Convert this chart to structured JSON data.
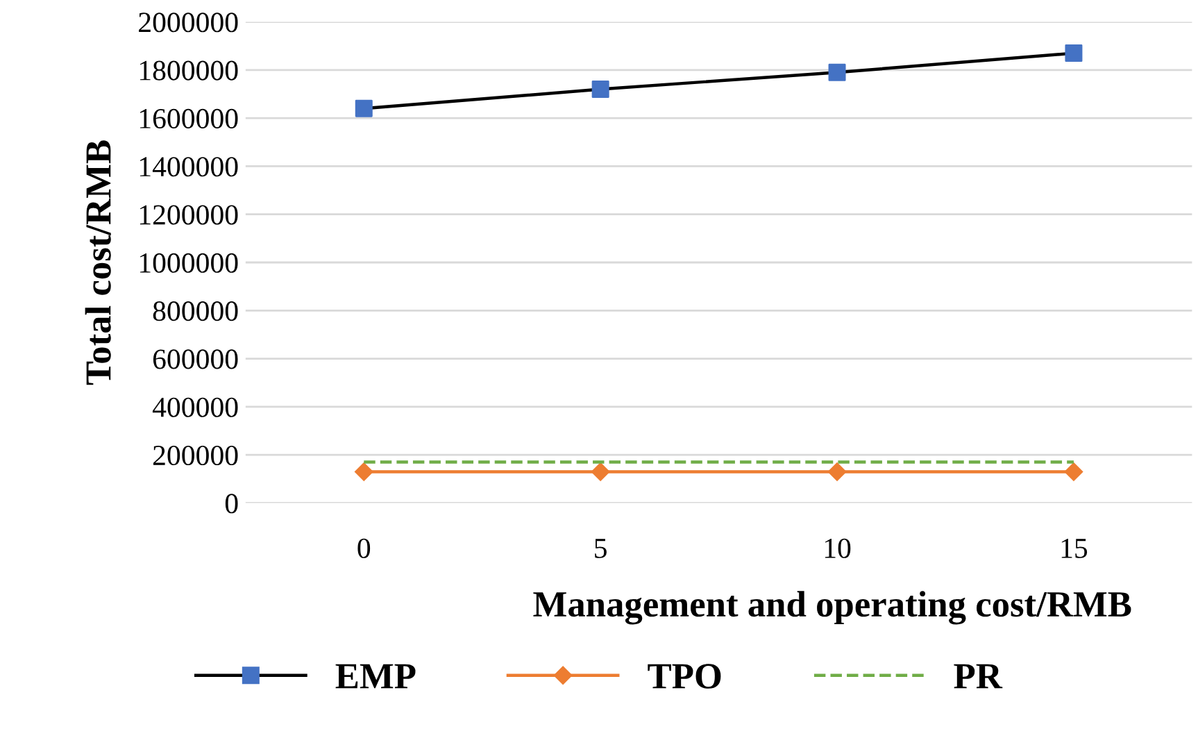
{
  "chart_data": {
    "type": "line",
    "xlabel": "Management and operating cost/RMB",
    "ylabel": "Total cost/RMB",
    "categories": [
      "0",
      "5",
      "10",
      "15"
    ],
    "series": [
      {
        "name": "EMP",
        "color": "#000000",
        "colors": [
          "#4472c4",
          "#4472c4",
          "#4472c4",
          "#4472c4"
        ],
        "marker": "square",
        "line_style": "solid",
        "values": [
          1640000,
          1720000,
          1790000,
          1870000
        ]
      },
      {
        "name": "TPO",
        "color": "#ed7d31",
        "marker": "diamond",
        "line_style": "solid",
        "values": [
          130000,
          130000,
          130000,
          130000
        ]
      },
      {
        "name": "PR",
        "color": "#70ad47",
        "marker": "none",
        "line_style": "dashed",
        "values": [
          170000,
          170000,
          170000,
          170000
        ]
      }
    ],
    "ylim": [
      0,
      2000000
    ],
    "yticks": [
      0,
      200000,
      400000,
      600000,
      800000,
      1000000,
      1200000,
      1400000,
      1600000,
      1800000,
      2000000
    ],
    "grid": "y",
    "legend": "bottom"
  }
}
